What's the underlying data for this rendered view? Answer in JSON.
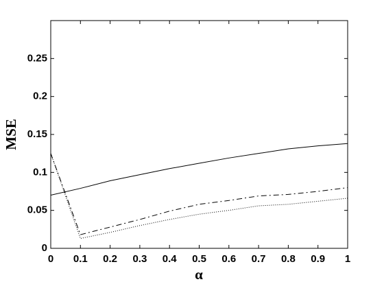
{
  "chart_data": {
    "type": "line",
    "x_label": "α",
    "y_label": "MSE",
    "x": [
      0,
      0.1,
      0.2,
      0.3,
      0.4,
      0.5,
      0.6,
      0.7,
      0.8,
      0.9,
      1
    ],
    "series": [
      {
        "color": "#000000",
        "line_style": "solid",
        "values": [
          0.07,
          0.079,
          0.089,
          0.097,
          0.105,
          0.112,
          0.119,
          0.125,
          0.131,
          0.135,
          0.138
        ]
      },
      {
        "color": "#000000",
        "line_style": "dashed",
        "values": [
          0.125,
          0.018,
          0.028,
          0.038,
          0.049,
          0.058,
          0.063,
          0.069,
          0.071,
          0.075,
          0.08
        ]
      },
      {
        "color": "#000000",
        "line_style": "dotted",
        "values": [
          0.125,
          0.013,
          0.021,
          0.03,
          0.038,
          0.045,
          0.05,
          0.056,
          0.058,
          0.062,
          0.066
        ]
      }
    ],
    "xlim": [
      0,
      1
    ],
    "xticks": [
      0,
      0.1,
      0.2,
      0.3,
      0.4,
      0.5,
      0.6,
      0.7,
      0.8,
      0.9,
      1
    ],
    "ylim": [
      0,
      0.3
    ],
    "yticks": [
      0,
      0.05,
      0.1,
      0.15,
      0.2,
      0.25
    ],
    "grid": false
  }
}
